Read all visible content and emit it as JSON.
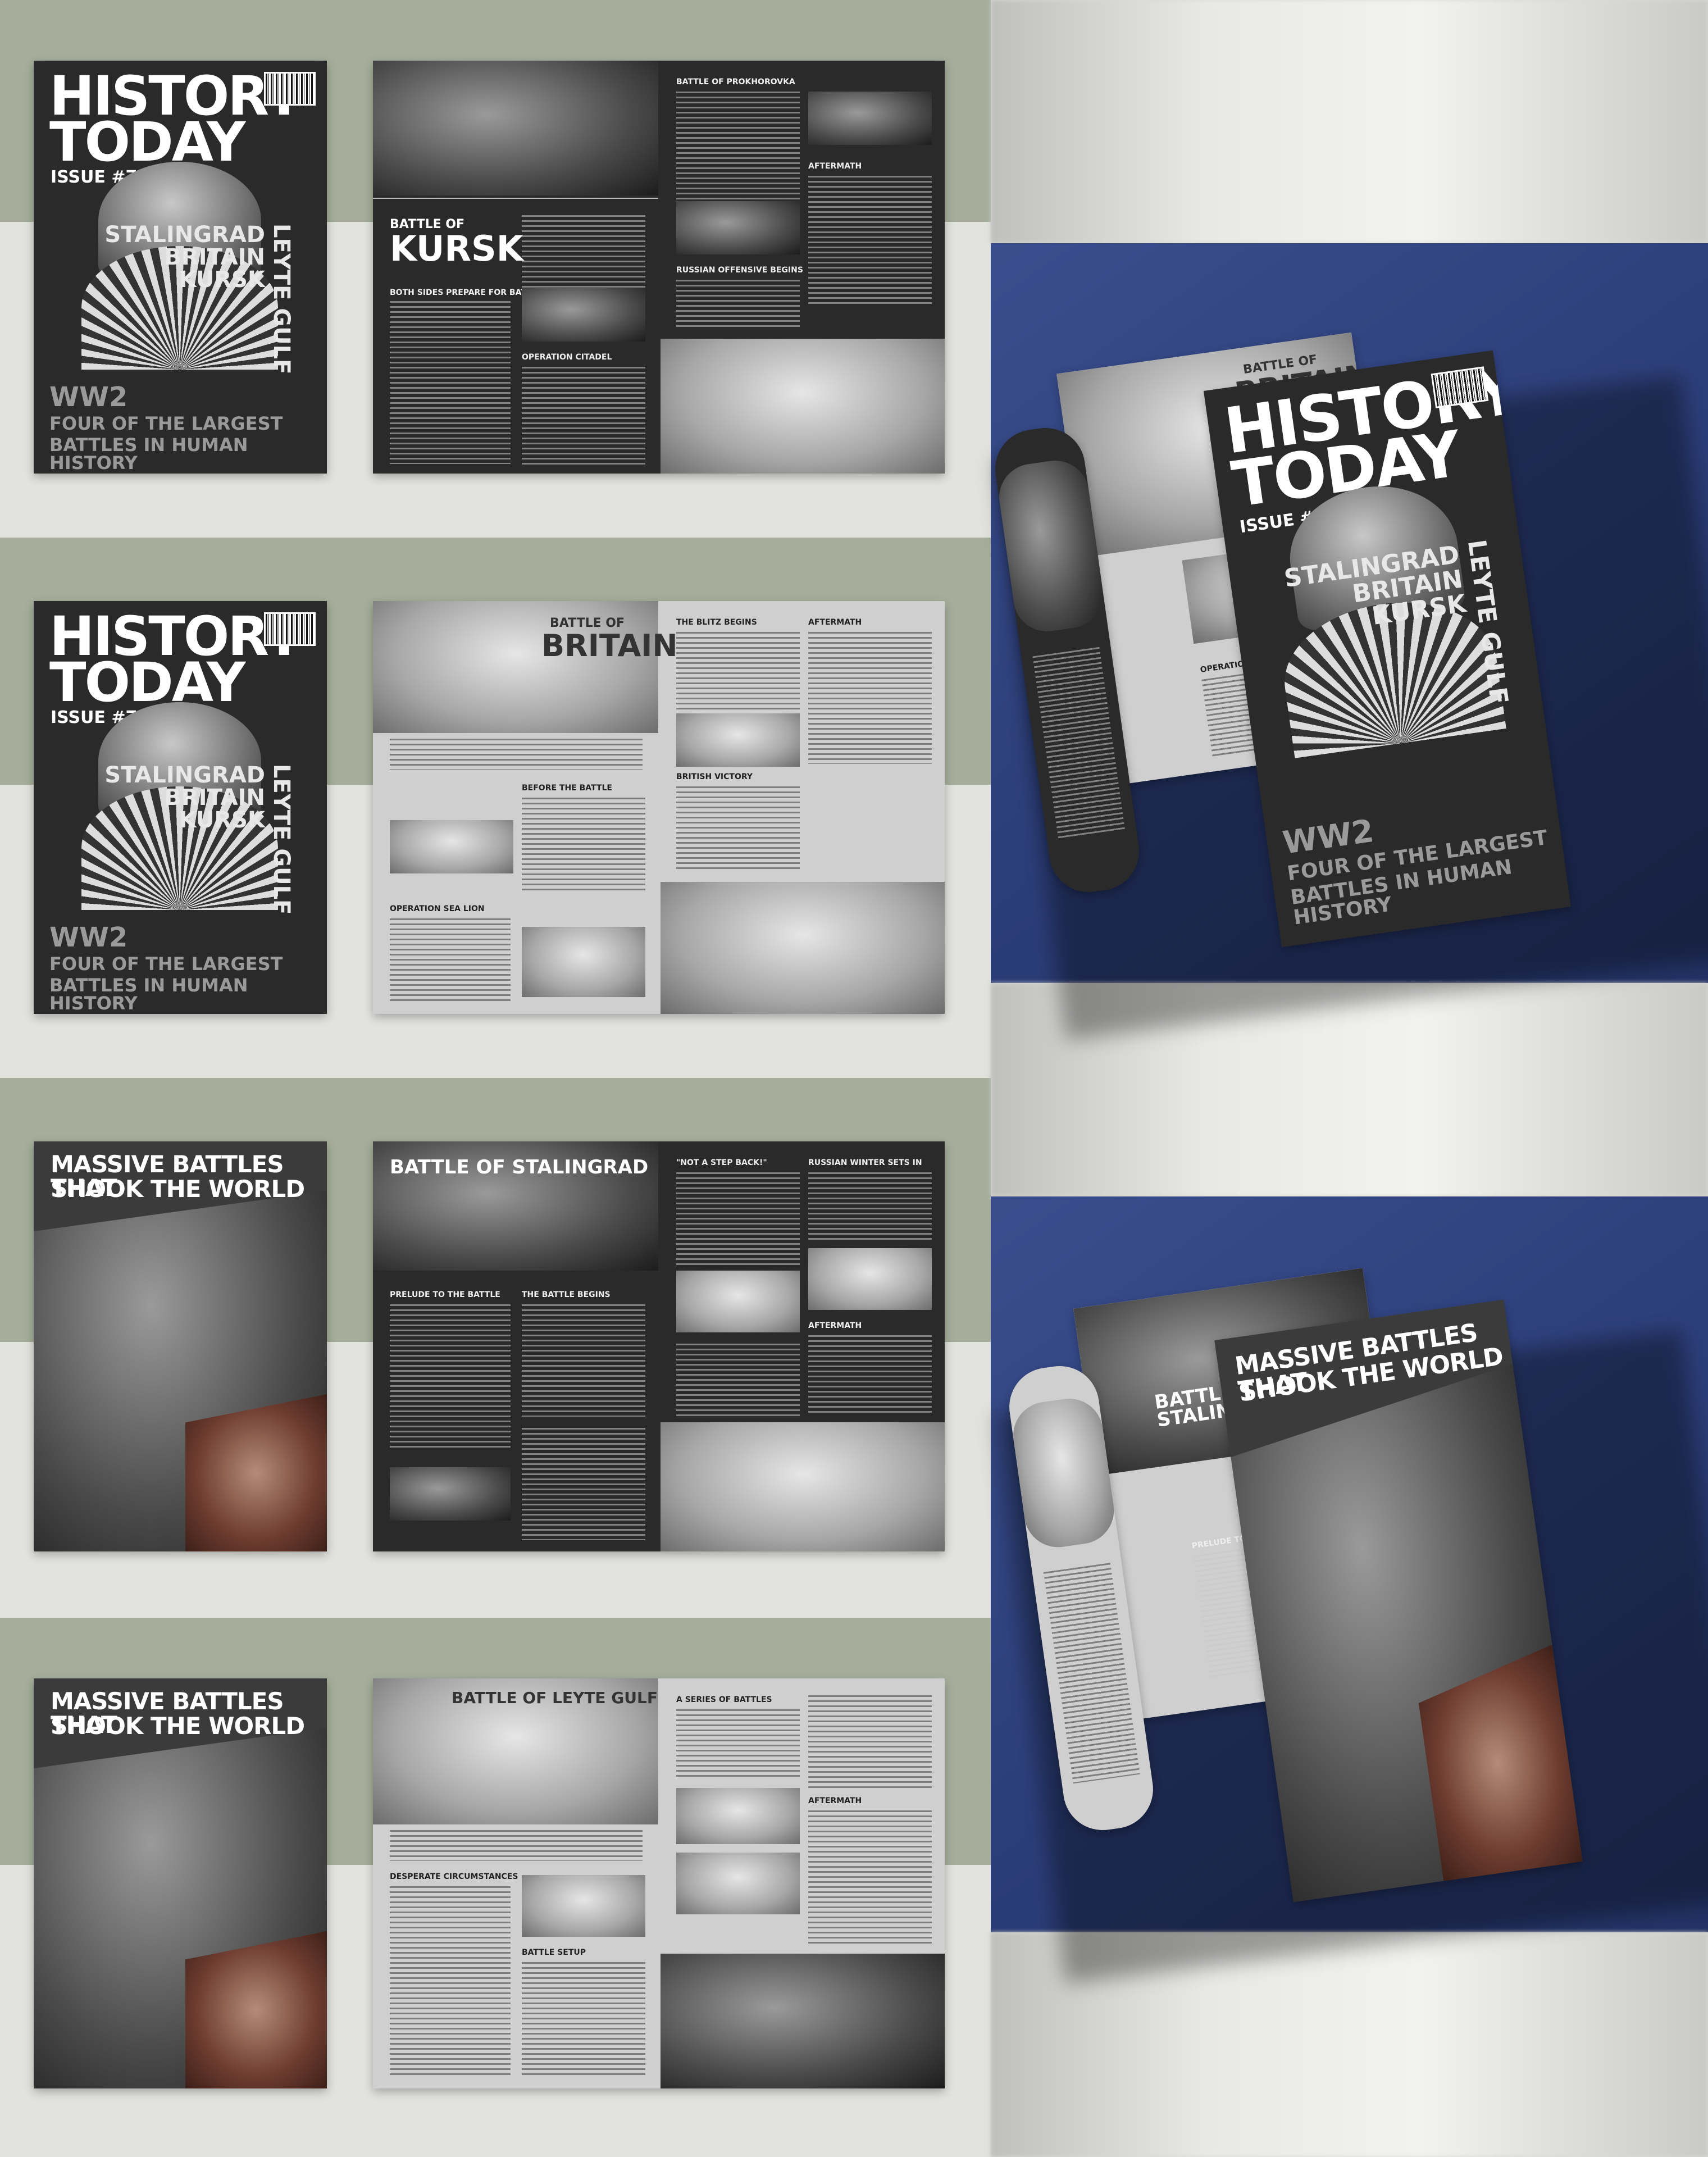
{
  "cover": {
    "masthead": "HISTORY TODAY",
    "masthead_line1": "HISTORY",
    "masthead_line2": "TODAY",
    "issue": "ISSUE #7",
    "topics": [
      "STALINGRAD",
      "BRITAIN",
      "KURSK"
    ],
    "vertical_topic": "LEYTE GULF",
    "headline_ww2": "WW2",
    "headline_line1": "FOUR OF THE LARGEST",
    "headline_line2": "BATTLES IN HUMAN HISTORY"
  },
  "cover2": {
    "headline_line1": "MASSIVE BATTLES THAT",
    "headline_line2": "SHOOK THE WORLD"
  },
  "kursk": {
    "title_small": "BATTLE OF",
    "title_big": "KURSK",
    "sections": [
      "BOTH SIDES PREPARE FOR BATTLE",
      "OPERATION CITADEL",
      "BATTLE OF PROKHOROVKA",
      "AFTERMATH",
      "RUSSIAN OFFENSIVE BEGINS"
    ]
  },
  "britain": {
    "title_small": "BATTLE OF",
    "title_big": "BRITAIN",
    "sections": [
      "BEFORE THE BATTLE",
      "OPERATION SEA LION",
      "THE BLITZ BEGINS",
      "BRITISH VICTORY",
      "AFTERMATH"
    ]
  },
  "stalingrad": {
    "title": "BATTLE OF STALINGRAD",
    "sections": [
      "PRELUDE TO THE BATTLE",
      "THE BATTLE BEGINS",
      "\"NOT A STEP BACK!\"",
      "RUSSIAN WINTER SETS IN",
      "AFTERMATH"
    ]
  },
  "leyte": {
    "title": "BATTLE OF LEYTE GULF",
    "sections": [
      "DESPERATE CIRCUMSTANCES",
      "BATTLE SETUP",
      "A SERIES OF BATTLES",
      "AFTERMATH"
    ]
  },
  "mockup1": {
    "open_title_small": "BATTLE OF",
    "open_title_big": "BRITAIN",
    "open_section": "OPERATION SEA LION"
  },
  "mockup2": {
    "open_title": "BATTLE OF STALINGRAD",
    "open_section": "PRELUDE TO THE BATTLE"
  }
}
